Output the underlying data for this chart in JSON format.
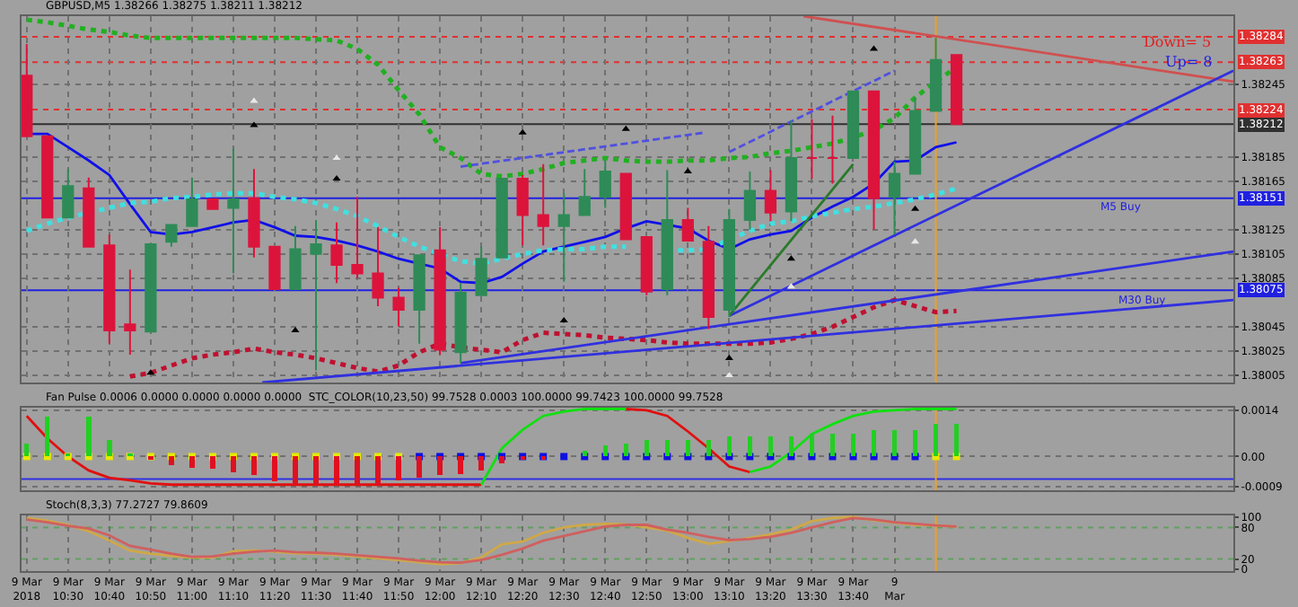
{
  "chart_data": [
    {
      "type": "candlestick",
      "title": "GBPUSD,M5 1.38266 1.38275 1.38211 1.38212",
      "annotations": [
        "Down= 5",
        "Up= 8",
        {
          "text": "M5 Buy",
          "x": "2018-03-09T14:45",
          "y": 1.38151
        },
        {
          "text": "M30 Buy",
          "x": "2018-03-09T14:50",
          "y": 1.38075
        }
      ],
      "x": [
        "2018-03-09T10:20",
        "2018-03-09T10:25",
        "2018-03-09T10:30",
        "2018-03-09T10:35",
        "2018-03-09T10:40",
        "2018-03-09T10:45",
        "2018-03-09T10:50",
        "2018-03-09T10:55",
        "2018-03-09T11:00",
        "2018-03-09T11:05",
        "2018-03-09T11:10",
        "2018-03-09T11:15",
        "2018-03-09T11:20",
        "2018-03-09T11:25",
        "2018-03-09T11:30",
        "2018-03-09T11:35",
        "2018-03-09T11:40",
        "2018-03-09T11:45",
        "2018-03-09T11:50",
        "2018-03-09T11:55",
        "2018-03-09T12:00",
        "2018-03-09T12:05",
        "2018-03-09T12:10",
        "2018-03-09T12:15",
        "2018-03-09T12:20",
        "2018-03-09T12:25",
        "2018-03-09T12:30",
        "2018-03-09T12:35",
        "2018-03-09T12:40",
        "2018-03-09T12:45",
        "2018-03-09T12:50",
        "2018-03-09T12:55",
        "2018-03-09T13:00",
        "2018-03-09T13:05",
        "2018-03-09T13:10",
        "2018-03-09T13:15",
        "2018-03-09T13:20",
        "2018-03-09T13:25",
        "2018-03-09T13:30",
        "2018-03-09T13:35",
        "2018-03-09T13:40",
        "2018-03-09T13:45",
        "2018-03-09T13:50",
        "2018-03-09T13:55",
        "2018-03-09T14:00",
        "2018-03-09T14:05"
      ],
      "ohlc": [
        [
          1.38252,
          1.38278,
          1.38202,
          1.38202
        ],
        [
          1.38202,
          1.38202,
          1.38135,
          1.38135
        ],
        [
          1.38135,
          1.38175,
          1.38135,
          1.38161
        ],
        [
          1.38159,
          1.38168,
          1.38111,
          1.38111
        ],
        [
          1.38112,
          1.38121,
          1.38031,
          1.38042
        ],
        [
          1.38047,
          1.38092,
          1.38022,
          1.38042
        ],
        [
          1.38041,
          1.38113,
          1.38041,
          1.38113
        ],
        [
          1.38115,
          1.38129,
          1.38111,
          1.38129
        ],
        [
          1.38128,
          1.38168,
          1.38128,
          1.3815
        ],
        [
          1.3815,
          1.3815,
          1.38142,
          1.38142
        ],
        [
          1.38143,
          1.38192,
          1.38089,
          1.3815
        ],
        [
          1.38151,
          1.38175,
          1.38102,
          1.38111
        ],
        [
          1.38111,
          1.38111,
          1.38076,
          1.38076
        ],
        [
          1.38076,
          1.38128,
          1.38076,
          1.38109
        ],
        [
          1.38105,
          1.38133,
          1.38009,
          1.38113
        ],
        [
          1.38112,
          1.38131,
          1.38081,
          1.38096
        ],
        [
          1.38096,
          1.38152,
          1.38085,
          1.38089
        ],
        [
          1.38089,
          1.38127,
          1.38062,
          1.38069
        ],
        [
          1.38069,
          1.38077,
          1.38045,
          1.38059
        ],
        [
          1.38059,
          1.38104,
          1.38031,
          1.38104
        ],
        [
          1.38108,
          1.38127,
          1.38022,
          1.38026
        ],
        [
          1.38024,
          1.38081,
          1.38015,
          1.38073
        ],
        [
          1.38071,
          1.38111,
          1.38071,
          1.38101
        ],
        [
          1.38102,
          1.38167,
          1.38102,
          1.38167
        ],
        [
          1.38167,
          1.3817,
          1.38112,
          1.38137
        ],
        [
          1.38137,
          1.38179,
          1.38112,
          1.38128
        ],
        [
          1.38128,
          1.38155,
          1.38082,
          1.38137
        ],
        [
          1.38137,
          1.38175,
          1.38137,
          1.38152
        ],
        [
          1.38152,
          1.38182,
          1.38143,
          1.38173
        ],
        [
          1.38171,
          1.38171,
          1.38117,
          1.38117
        ],
        [
          1.38119,
          1.38119,
          1.38071,
          1.38074
        ],
        [
          1.38076,
          1.38174,
          1.38071,
          1.38133
        ],
        [
          1.38133,
          1.38143,
          1.38116,
          1.38116
        ],
        [
          1.38115,
          1.38128,
          1.38043,
          1.38053
        ],
        [
          1.38059,
          1.38142,
          1.38053,
          1.38133
        ],
        [
          1.38133,
          1.38173,
          1.38125,
          1.38157
        ],
        [
          1.38157,
          1.38174,
          1.38132,
          1.38139
        ],
        [
          1.3814,
          1.38215,
          1.38132,
          1.38184
        ],
        [
          1.38184,
          1.38216,
          1.38167,
          1.38184
        ],
        [
          1.38184,
          1.38219,
          1.38163,
          1.38184
        ],
        [
          1.38184,
          1.38239,
          1.38184,
          1.38239
        ],
        [
          1.38239,
          1.38239,
          1.38125,
          1.38151
        ],
        [
          1.38152,
          1.38181,
          1.38121,
          1.38171
        ],
        [
          1.38171,
          1.38234,
          1.38171,
          1.38223
        ],
        [
          1.38223,
          1.38283,
          1.38223,
          1.38265
        ],
        [
          1.38269,
          1.38269,
          1.38212,
          1.38212
        ]
      ],
      "colors": [
        "#dc143c",
        "#dc143c",
        "#2e8b57",
        "#dc143c",
        "#dc143c",
        "#dc143c",
        "#2e8b57",
        "#2e8b57",
        "#2e8b57",
        "#dc143c",
        "#2e8b57",
        "#dc143c",
        "#dc143c",
        "#2e8b57",
        "#2e8b57",
        "#dc143c",
        "#dc143c",
        "#dc143c",
        "#dc143c",
        "#2e8b57",
        "#dc143c",
        "#2e8b57",
        "#2e8b57",
        "#2e8b57",
        "#dc143c",
        "#dc143c",
        "#2e8b57",
        "#2e8b57",
        "#2e8b57",
        "#dc143c",
        "#dc143c",
        "#2e8b57",
        "#dc143c",
        "#dc143c",
        "#2e8b57",
        "#2e8b57",
        "#dc143c",
        "#2e8b57",
        "#dc143c",
        "#dc143c",
        "#2e8b57",
        "#dc143c",
        "#2e8b57",
        "#2e8b57",
        "#2e8b57",
        "#dc143c"
      ],
      "series": [
        {
          "type": "line",
          "color": "#1010e8",
          "values": [
            1.38204,
            1.38204,
            1.38193,
            1.38182,
            1.3817,
            1.38146,
            1.38123,
            1.38121,
            1.38123,
            1.38127,
            1.38131,
            1.38133,
            1.38127,
            1.3812,
            1.38119,
            1.38116,
            1.38112,
            1.38107,
            1.38101,
            1.38097,
            1.38093,
            1.38082,
            1.38081,
            1.38086,
            1.38097,
            1.38107,
            1.38111,
            1.38115,
            1.38119,
            1.38126,
            1.38132,
            1.38129,
            1.38126,
            1.38116,
            1.38109,
            1.38117,
            1.38121,
            1.38124,
            1.38135,
            1.38144,
            1.38152,
            1.38163,
            1.38181,
            1.38182,
            1.38193,
            1.38197
          ]
        },
        {
          "type": "line",
          "color": "#40e0e0",
          "line_style": "dotted",
          "values": [
            1.38124,
            1.3813,
            1.38135,
            1.38139,
            1.38143,
            1.38147,
            1.38148,
            1.38151,
            1.38152,
            1.38154,
            1.38155,
            1.38155,
            1.38152,
            1.3815,
            1.38147,
            1.38142,
            1.38136,
            1.38128,
            1.38119,
            1.38111,
            1.38105,
            1.38099,
            1.38097,
            1.38101,
            1.38105,
            1.38108,
            1.38109,
            1.38109,
            1.38111,
            1.38111,
            null,
            1.38108,
            1.38108,
            1.38109,
            1.38117,
            1.38124,
            1.3813,
            1.38132,
            1.38136,
            1.38139,
            1.38142,
            1.38144,
            1.38147,
            1.3815,
            1.38154,
            1.38159
          ]
        },
        {
          "type": "line",
          "color": "#20b020",
          "line_style": "dotted",
          "values": [
            1.38298,
            1.38296,
            1.38293,
            1.3829,
            1.38288,
            1.38285,
            1.38283,
            1.38283,
            1.38283,
            1.38283,
            1.38283,
            1.38283,
            1.38283,
            1.38283,
            1.38282,
            1.38281,
            1.38274,
            1.38261,
            1.3824,
            1.3822,
            1.38193,
            1.38184,
            1.38171,
            1.38169,
            1.38171,
            1.38175,
            1.3818,
            1.38182,
            1.38184,
            1.38182,
            1.38181,
            1.38181,
            1.38182,
            1.38182,
            1.38184,
            1.38185,
            1.38188,
            1.3819,
            1.38193,
            1.38196,
            1.38201,
            1.38207,
            1.38217,
            1.38234,
            1.38247,
            1.38259
          ]
        },
        {
          "type": "line",
          "color": "#c01030",
          "line_style": "dotted",
          "values": [
            null,
            null,
            null,
            null,
            null,
            1.38004,
            1.38007,
            1.38013,
            1.38019,
            1.38022,
            1.38024,
            1.38027,
            1.38024,
            1.38022,
            1.38019,
            1.38015,
            1.38011,
            1.38008,
            1.38013,
            1.38024,
            1.38031,
            1.38028,
            1.38026,
            1.38024,
            1.38034,
            1.3804,
            1.38039,
            1.38038,
            1.38036,
            1.38035,
            1.38034,
            1.38032,
            1.38031,
            1.38031,
            1.38031,
            1.38031,
            1.38032,
            1.38035,
            1.38039,
            1.38045,
            1.38053,
            1.38061,
            1.38067,
            1.38062,
            1.38057,
            1.38058
          ]
        },
        {
          "type": "line",
          "color": "#d05050",
          "x": [
            "2018-03-09T13:28",
            "2018-03-09T15:12"
          ],
          "values": [
            1.38301,
            1.38247
          ]
        },
        {
          "type": "line",
          "color": "#3030e0",
          "x": [
            "2018-03-09T13:10",
            "2018-03-09T15:12"
          ],
          "values": [
            1.38054,
            1.38256
          ]
        },
        {
          "type": "line",
          "color": "#3030e0",
          "x": [
            "2018-03-09T11:17",
            "2018-03-09T15:12"
          ],
          "values": [
            1.37999,
            1.38067
          ]
        },
        {
          "type": "line",
          "color": "#3030e0",
          "x": [
            "2018-03-09T12:05",
            "2018-03-09T15:12"
          ],
          "values": [
            1.38015,
            1.38107
          ]
        },
        {
          "type": "line",
          "color": "#5050e0",
          "line_style": "dashed",
          "x": [
            "2018-03-09T12:05",
            "2018-03-09T13:04"
          ],
          "values": [
            1.38177,
            1.38205
          ]
        },
        {
          "type": "line",
          "color": "#5050e0",
          "line_style": "dashed",
          "x": [
            "2018-03-09T13:10",
            "2018-03-09T13:50"
          ],
          "values": [
            1.38189,
            1.38256
          ]
        },
        {
          "type": "line",
          "color": "#2a7a2a",
          "x": [
            "2018-03-09T13:10",
            "2018-03-09T13:40"
          ],
          "values": [
            1.38054,
            1.38179
          ]
        },
        {
          "type": "scatter",
          "color": "#000000",
          "marker": "triangle",
          "x": [
            "2018-03-09T11:15",
            "2018-03-09T11:35",
            "2018-03-09T12:20",
            "2018-03-09T12:45",
            "2018-03-09T13:00",
            "2018-03-09T13:45"
          ],
          "values": [
            1.38211,
            1.38167,
            1.38205,
            1.38208,
            1.38173,
            1.38274
          ]
        },
        {
          "type": "scatter",
          "color": "#000000",
          "marker": "triangle",
          "x": [
            "2018-03-09T10:50",
            "2018-03-09T11:25",
            "2018-03-09T12:30",
            "2018-03-09T13:10",
            "2018-03-09T13:25",
            "2018-03-09T13:55"
          ],
          "values": [
            1.38007,
            1.38042,
            1.3805,
            1.38019,
            1.38101,
            1.38142
          ]
        },
        {
          "type": "scatter",
          "color": "#e8e8e8",
          "marker": "triangle",
          "x": [
            "2018-03-09T11:15",
            "2018-03-09T11:35",
            "2018-03-09T13:10",
            "2018-03-09T13:25",
            "2018-03-09T13:55"
          ],
          "values": [
            1.38231,
            1.38184,
            1.38005,
            1.38078,
            1.38115
          ]
        }
      ],
      "ref_lines": [
        {
          "axis": "y",
          "value": 1.38284,
          "label": "1.38284",
          "color": "#e03030",
          "line_style": "dotted"
        },
        {
          "axis": "y",
          "value": 1.38263,
          "label": "1.38263",
          "color": "#e03030",
          "line_style": "dotted"
        },
        {
          "axis": "y",
          "value": 1.38224,
          "label": "1.38224",
          "color": "#e03030",
          "line_style": "dotted"
        },
        {
          "axis": "y",
          "value": 1.38212,
          "label": "1.38212",
          "color": "#303030",
          "line_style": "solid"
        },
        {
          "axis": "y",
          "value": 1.38151,
          "label": "1.38151",
          "color": "#2020e0",
          "line_style": "solid"
        },
        {
          "axis": "y",
          "value": 1.38075,
          "label": "1.38075",
          "color": "#2020e0",
          "line_style": "solid"
        },
        {
          "axis": "x",
          "value": "2018-03-09T14:00",
          "label": null,
          "color": "#f0a020",
          "line_style": "solid"
        }
      ],
      "xlim": [
        "2018-03-09T10:18:45",
        "2018-03-09T15:12"
      ],
      "xticks": [
        {
          "value": "2018-03-09T10:20",
          "label": null
        },
        {
          "value": "2018-03-09T10:30",
          "label": null
        },
        {
          "value": "2018-03-09T10:40",
          "label": null
        },
        {
          "value": "2018-03-09T10:50",
          "label": null
        },
        {
          "value": "2018-03-09T11:00",
          "label": null
        },
        {
          "value": "2018-03-09T11:10",
          "label": null
        },
        {
          "value": "2018-03-09T11:20",
          "label": null
        },
        {
          "value": "2018-03-09T11:30",
          "label": null
        },
        {
          "value": "2018-03-09T11:40",
          "label": null
        },
        {
          "value": "2018-03-09T11:50",
          "label": null
        },
        {
          "value": "2018-03-09T12:00",
          "label": null
        },
        {
          "value": "2018-03-09T12:10",
          "label": null
        },
        {
          "value": "2018-03-09T12:20",
          "label": null
        },
        {
          "value": "2018-03-09T12:30",
          "label": null
        },
        {
          "value": "2018-03-09T12:40",
          "label": null
        },
        {
          "value": "2018-03-09T12:50",
          "label": null
        },
        {
          "value": "2018-03-09T13:00",
          "label": null
        },
        {
          "value": "2018-03-09T13:10",
          "label": null
        },
        {
          "value": "2018-03-09T13:20",
          "label": null
        },
        {
          "value": "2018-03-09T13:30",
          "label": null
        },
        {
          "value": "2018-03-09T13:40",
          "label": null
        },
        {
          "value": "2018-03-09T13:50",
          "label": null
        }
      ],
      "ylim": [
        1.37999,
        1.38301
      ],
      "yticks": [
        1.38005,
        1.38025,
        1.38045,
        1.38085,
        1.38105,
        1.38125,
        1.38165,
        1.38185,
        1.38245
      ],
      "grid": true,
      "tick_labels": "y"
    },
    {
      "type": "bar",
      "title": "Fan Pulse 0.0006 0.0000 0.0000 0.0000 0.0000  STC_COLOR(10,23,50) 99.7528 0.0003 100.0000 99.7423 100.0000 99.7528",
      "x": [
        "2018-03-09T10:20",
        "2018-03-09T10:25",
        "2018-03-09T10:30",
        "2018-03-09T10:35",
        "2018-03-09T10:40",
        "2018-03-09T10:45",
        "2018-03-09T10:50",
        "2018-03-09T10:55",
        "2018-03-09T11:00",
        "2018-03-09T11:05",
        "2018-03-09T11:10",
        "2018-03-09T11:15",
        "2018-03-09T11:20",
        "2018-03-09T11:25",
        "2018-03-09T11:30",
        "2018-03-09T11:35",
        "2018-03-09T11:40",
        "2018-03-09T11:45",
        "2018-03-09T11:50",
        "2018-03-09T11:55",
        "2018-03-09T12:00",
        "2018-03-09T12:05",
        "2018-03-09T12:10",
        "2018-03-09T12:15",
        "2018-03-09T12:20",
        "2018-03-09T12:25",
        "2018-03-09T12:30",
        "2018-03-09T12:35",
        "2018-03-09T12:40",
        "2018-03-09T12:45",
        "2018-03-09T12:50",
        "2018-03-09T12:55",
        "2018-03-09T13:00",
        "2018-03-09T13:05",
        "2018-03-09T13:10",
        "2018-03-09T13:15",
        "2018-03-09T13:20",
        "2018-03-09T13:25",
        "2018-03-09T13:30",
        "2018-03-09T13:35",
        "2018-03-09T13:40",
        "2018-03-09T13:45",
        "2018-03-09T13:50",
        "2018-03-09T13:55",
        "2018-03-09T14:00",
        "2018-03-09T14:05"
      ],
      "series": [
        {
          "type": "bar",
          "colors": [
            "#20d020",
            "#20d020",
            "#20d020",
            "#20d020",
            "#20d020",
            "#20d020",
            "#e01020",
            "#e01020",
            "#e01020",
            "#e01020",
            "#e01020",
            "#e01020",
            "#e01020",
            "#e01020",
            "#e01020",
            "#e01020",
            "#e01020",
            "#e01020",
            "#e01020",
            "#e01020",
            "#e01020",
            "#e01020",
            "#e01020",
            "#e01020",
            "#e01020",
            "#e01020",
            "#20d020",
            "#20d020",
            "#20d020",
            "#20d020",
            "#20d020",
            "#20d020",
            "#20d020",
            "#20d020",
            "#20d020",
            "#20d020",
            "#20d020",
            "#20d020",
            "#20d020",
            "#20d020",
            "#20d020",
            "#20d020",
            "#20d020",
            "#20d020",
            "#20d020",
            "#20d020"
          ],
          "values": [
            0.0004,
            0.0012,
            0.0001,
            0.0012,
            0.0005,
            0.0001,
            -0.0001,
            -0.00025,
            -0.00034,
            -0.00038,
            -0.00047,
            -0.00055,
            -0.00076,
            -0.00085,
            -0.00085,
            -0.00085,
            -0.00085,
            -0.00085,
            -0.00072,
            -0.00064,
            -0.00055,
            -0.00052,
            -0.00042,
            -0.00021,
            -0.0001,
            -0.0001,
            0,
            0.00017,
            0.00034,
            0.00038,
            0.0005,
            0.0005,
            0.0005,
            0.0005,
            0.0006,
            0.0006,
            0.0006,
            0.0006,
            0.0007,
            0.0007,
            0.0007,
            0.0008,
            0.0008,
            0.0008,
            0.001,
            0.001
          ]
        },
        {
          "type": "line",
          "color": "#e01010",
          "values": [
            0.00123,
            0.00055,
            0,
            -0.00042,
            -0.00064,
            -0.00072,
            -0.00081,
            -0.00085,
            -0.00085,
            -0.00085,
            -0.00085,
            -0.00085,
            -0.00085,
            -0.00085,
            -0.00085,
            -0.00085,
            -0.00085,
            -0.00085,
            -0.00085,
            -0.00085,
            -0.00085,
            -0.00085,
            -0.00085,
            null,
            null,
            null,
            null,
            null,
            null,
            0.00144,
            0.0014,
            0.00123,
            0.00076,
            0.00025,
            -0.0003,
            -0.00047,
            null,
            null,
            null,
            null,
            null,
            null,
            null,
            null,
            null,
            null
          ]
        },
        {
          "type": "line",
          "color": "#10e010",
          "values": [
            null,
            null,
            null,
            null,
            null,
            null,
            null,
            null,
            null,
            null,
            null,
            null,
            null,
            null,
            null,
            null,
            null,
            null,
            null,
            null,
            null,
            null,
            -0.00085,
            0.00025,
            0.00081,
            0.00123,
            0.00136,
            0.00144,
            0.00144,
            0.00144,
            null,
            null,
            null,
            null,
            null,
            -0.00047,
            -0.0003,
            0.00013,
            0.00068,
            0.00098,
            0.00123,
            0.00136,
            0.0014,
            0.00144,
            0.00144,
            0.00144
          ]
        },
        {
          "type": "scatter",
          "marker": "square",
          "colors": [
            "#e8e800",
            "#e8e800",
            "#e8e800",
            "#e8e800",
            "#e8e800",
            "#e8e800",
            "#e8e800",
            "#e8e800",
            "#e8e800",
            "#e8e800",
            "#e8e800",
            "#e8e800",
            "#e8e800",
            "#e8e800",
            "#e8e800",
            "#e8e800",
            "#e8e800",
            "#e8e800",
            "#e8e800",
            "#1010e0",
            "#1010e0",
            "#1010e0",
            "#1010e0",
            "#1010e0",
            "#1010e0",
            "#1010e0",
            "#1010e0",
            "#1010e0",
            "#1010e0",
            "#1010e0",
            "#1010e0",
            "#1010e0",
            "#1010e0",
            "#1010e0",
            "#1010e0",
            "#1010e0",
            "#1010e0",
            "#1010e0",
            "#1010e0",
            "#1010e0",
            "#1010e0",
            "#1010e0",
            "#1010e0",
            "#1010e0",
            "#e8e800",
            "#e8e800"
          ],
          "values": [
            0,
            0,
            0,
            0,
            0,
            0,
            0,
            0,
            0,
            0,
            0,
            0,
            0,
            0,
            0,
            0,
            0,
            0,
            0,
            0,
            0,
            0,
            0,
            0,
            0,
            0,
            0,
            0,
            0,
            0,
            0,
            0,
            0,
            0,
            0,
            0,
            0,
            0,
            0,
            0,
            0,
            0,
            0,
            0,
            0,
            0
          ]
        }
      ],
      "ref_lines": [
        {
          "axis": "y",
          "value": -0.00068,
          "label": null,
          "color": "#3030e0",
          "line_style": "solid"
        },
        {
          "axis": "x",
          "value": "2018-03-09T14:00",
          "label": null,
          "color": "#f0a020",
          "line_style": "solid"
        }
      ],
      "xlim": [
        "2018-03-09T10:18:45",
        "2018-03-09T15:12"
      ],
      "ylim": [
        -0.00102,
        0.00148
      ],
      "yticks": [
        0.0014,
        {
          "value": 0,
          "label": "0.00"
        },
        -0.0009
      ],
      "grid": true,
      "tick_labels": "y"
    },
    {
      "type": "line",
      "title": "Stoch(8,3,3) 77.2727 79.8609",
      "x": [
        "2018-03-09T10:20",
        "2018-03-09T10:25",
        "2018-03-09T10:30",
        "2018-03-09T10:35",
        "2018-03-09T10:40",
        "2018-03-09T10:45",
        "2018-03-09T10:50",
        "2018-03-09T10:55",
        "2018-03-09T11:00",
        "2018-03-09T11:05",
        "2018-03-09T11:10",
        "2018-03-09T11:15",
        "2018-03-09T11:20",
        "2018-03-09T11:25",
        "2018-03-09T11:30",
        "2018-03-09T11:35",
        "2018-03-09T11:40",
        "2018-03-09T11:45",
        "2018-03-09T11:50",
        "2018-03-09T11:55",
        "2018-03-09T12:00",
        "2018-03-09T12:05",
        "2018-03-09T12:10",
        "2018-03-09T12:15",
        "2018-03-09T12:20",
        "2018-03-09T12:25",
        "2018-03-09T12:30",
        "2018-03-09T12:35",
        "2018-03-09T12:40",
        "2018-03-09T12:45",
        "2018-03-09T12:50",
        "2018-03-09T12:55",
        "2018-03-09T13:00",
        "2018-03-09T13:05",
        "2018-03-09T13:10",
        "2018-03-09T13:15",
        "2018-03-09T13:20",
        "2018-03-09T13:25",
        "2018-03-09T13:30",
        "2018-03-09T13:35",
        "2018-03-09T13:40",
        "2018-03-09T13:45",
        "2018-03-09T13:50",
        "2018-03-09T13:55",
        "2018-03-09T14:00",
        "2018-03-09T14:05"
      ],
      "series": [
        {
          "color": "#d0a848",
          "values": [
            98,
            93,
            85,
            73,
            55,
            36,
            30,
            26,
            23,
            23,
            35,
            36,
            34,
            31,
            30,
            28,
            25,
            21,
            18,
            14,
            10,
            12,
            23,
            48,
            53,
            70,
            80,
            85,
            87,
            86,
            80,
            74,
            60,
            49,
            54,
            60,
            67,
            76,
            92,
            98,
            100,
            94,
            89,
            85,
            84,
            82
          ]
        },
        {
          "color": "#d06060",
          "values": [
            95,
            90,
            83,
            78,
            65,
            45,
            38,
            30,
            24,
            25,
            30,
            34,
            36,
            33,
            32,
            30,
            27,
            24,
            21,
            17,
            14,
            13,
            18,
            28,
            40,
            55,
            64,
            73,
            82,
            85,
            85,
            76,
            70,
            62,
            56,
            58,
            62,
            70,
            80,
            90,
            98,
            95,
            90,
            87,
            84,
            82
          ]
        }
      ],
      "ref_lines": [
        {
          "axis": "y",
          "value": 80,
          "label": null,
          "color": "#60a060",
          "line_style": "dotted"
        },
        {
          "axis": "y",
          "value": 20,
          "label": null,
          "color": "#60a060",
          "line_style": "dotted"
        },
        {
          "axis": "x",
          "value": "2018-03-09T14:00",
          "label": null,
          "color": "#f0a020",
          "line_style": "solid"
        }
      ],
      "xlim": [
        "2018-03-09T10:18:45",
        "2018-03-09T15:12"
      ],
      "xticks": [
        {
          "value": "2018-03-09T10:20",
          "label": "9 Mar 2018"
        },
        {
          "value": "2018-03-09T10:30",
          "label": "9 Mar 10:30"
        },
        {
          "value": "2018-03-09T10:40",
          "label": "9 Mar 10:40"
        },
        {
          "value": "2018-03-09T10:50",
          "label": "9 Mar 10:50"
        },
        {
          "value": "2018-03-09T11:00",
          "label": "9 Mar 11:00"
        },
        {
          "value": "2018-03-09T11:10",
          "label": "9 Mar 11:10"
        },
        {
          "value": "2018-03-09T11:20",
          "label": "9 Mar 11:20"
        },
        {
          "value": "2018-03-09T11:30",
          "label": "9 Mar 11:30"
        },
        {
          "value": "2018-03-09T11:40",
          "label": "9 Mar 11:40"
        },
        {
          "value": "2018-03-09T11:50",
          "label": "9 Mar 11:50"
        },
        {
          "value": "2018-03-09T12:00",
          "label": "9 Mar 12:00"
        },
        {
          "value": "2018-03-09T12:10",
          "label": "9 Mar 12:10"
        },
        {
          "value": "2018-03-09T12:20",
          "label": "9 Mar 12:20"
        },
        {
          "value": "2018-03-09T12:30",
          "label": "9 Mar 12:30"
        },
        {
          "value": "2018-03-09T12:40",
          "label": "9 Mar 12:40"
        },
        {
          "value": "2018-03-09T12:50",
          "label": "9 Mar 12:50"
        },
        {
          "value": "2018-03-09T13:00",
          "label": "9 Mar 13:00"
        },
        {
          "value": "2018-03-09T13:10",
          "label": "9 Mar 13:10"
        },
        {
          "value": "2018-03-09T13:20",
          "label": "9 Mar 13:20"
        },
        {
          "value": "2018-03-09T13:30",
          "label": "9 Mar 13:30"
        },
        {
          "value": "2018-03-09T13:40",
          "label": "9 Mar 13:40"
        },
        {
          "value": "2018-03-09T13:50",
          "label": "9 Mar"
        }
      ],
      "ylim": [
        -3,
        103
      ],
      "yticks": [
        0,
        20,
        80,
        100
      ],
      "grid": "x"
    }
  ]
}
